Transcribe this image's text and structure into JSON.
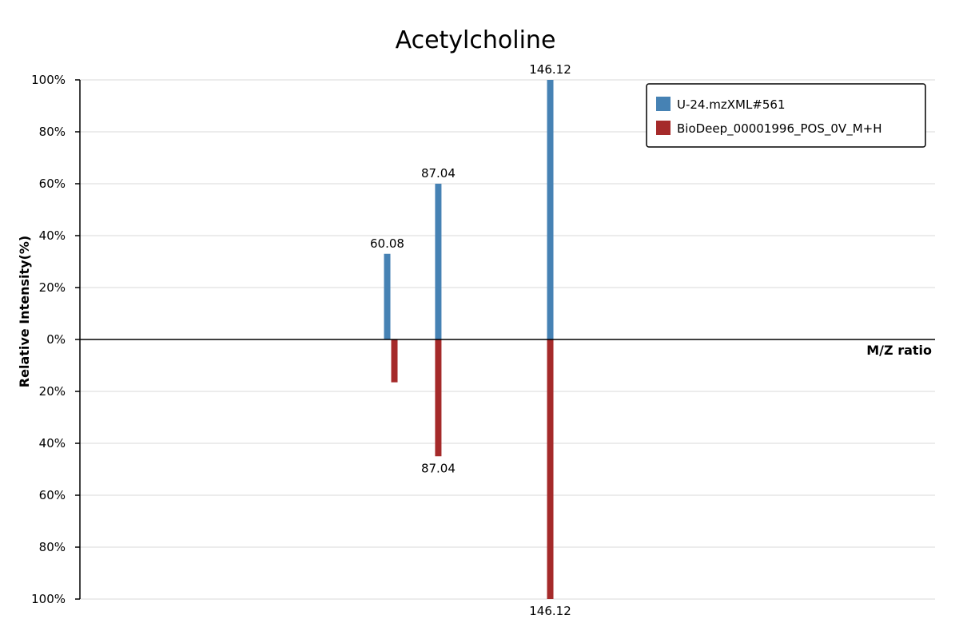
{
  "chart_data": {
    "type": "bar",
    "title": "Acetylcholine",
    "xlabel": "M/Z ratio",
    "ylabel": "Relative Intensity(%)",
    "ylim": [
      -100,
      100
    ],
    "y_ticks": [
      "100%",
      "80%",
      "60%",
      "40%",
      "20%",
      "0%",
      "20%",
      "40%",
      "60%",
      "80%",
      "100%"
    ],
    "y_tick_values": [
      100,
      80,
      60,
      40,
      20,
      0,
      -20,
      -40,
      -60,
      -80,
      -100
    ],
    "grid": true,
    "legend_position": "top-right",
    "series": [
      {
        "name": "U-24.mzXML#561",
        "color": "#4682b4",
        "x": [
          60.08,
          87.04,
          146.12
        ],
        "values": [
          33,
          60,
          100
        ],
        "labels": [
          "60.08",
          "87.04",
          "146.12"
        ]
      },
      {
        "name": "BioDeep_00001996_POS_0V_M+H",
        "color": "#a52a2a",
        "x": [
          60.08,
          87.04,
          146.12
        ],
        "values": [
          -16.5,
          -45,
          -100
        ],
        "labels": [
          "",
          "87.04",
          "146.12"
        ]
      }
    ]
  }
}
